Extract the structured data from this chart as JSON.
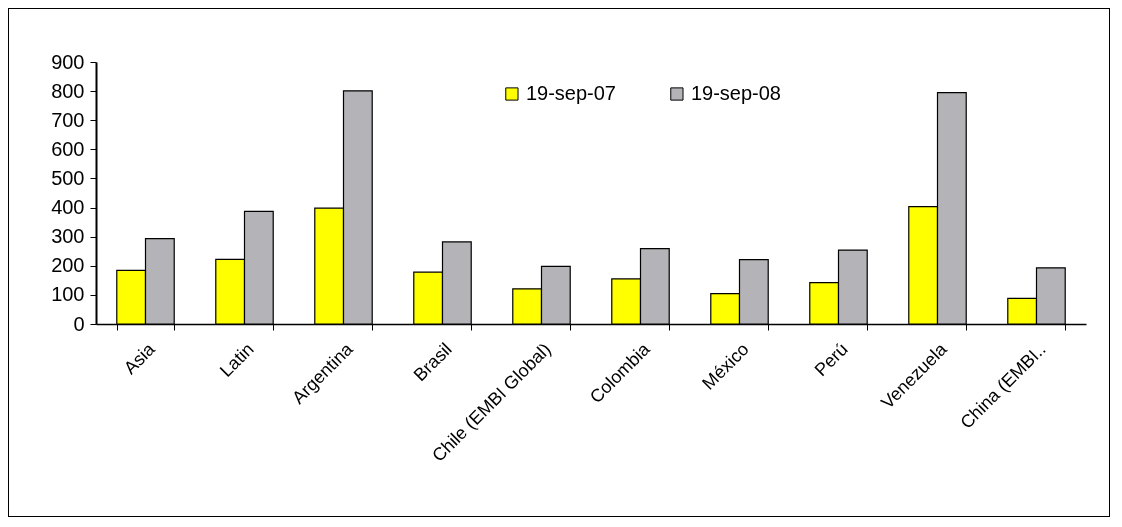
{
  "chart_data": {
    "type": "bar",
    "categories": [
      "Asia",
      "Latin",
      "Argentina",
      "Brasil",
      "Chile (EMBI Global)",
      "Colombia",
      "México",
      "Perú",
      "Venezuela",
      "China (EMBI.."
    ],
    "series": [
      {
        "name": "19-sep-07",
        "color": "#ffff00",
        "values": [
          184,
          222,
          398,
          178,
          121,
          155,
          104,
          142,
          403,
          88
        ]
      },
      {
        "name": "19-sep-08",
        "color": "#b4b4b8",
        "values": [
          293,
          387,
          801,
          282,
          198,
          259,
          221,
          254,
          795,
          193
        ]
      }
    ],
    "ylim": [
      0,
      900
    ],
    "yticks": [
      0,
      100,
      200,
      300,
      400,
      500,
      600,
      700,
      800,
      900
    ],
    "grid": false,
    "legend": "top"
  }
}
